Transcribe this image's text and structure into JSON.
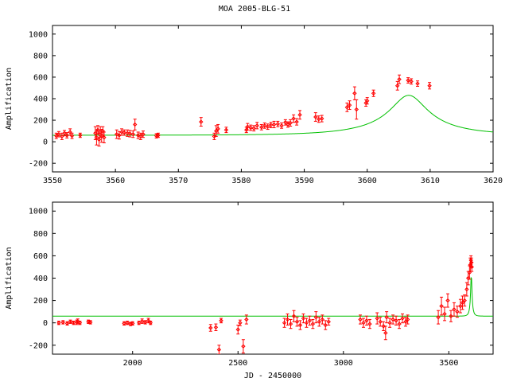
{
  "title": "MOA 2005-BLG-51",
  "colors": {
    "data": "#ff0000",
    "model": "#00c000",
    "axes": "#000000"
  },
  "chart_data": [
    {
      "type": "scatter",
      "ylabel": "Amplification",
      "xlabel": "",
      "xlim": [
        3550,
        3620
      ],
      "ylim": [
        -280,
        1080
      ],
      "xticks": [
        3550,
        3560,
        3570,
        3580,
        3590,
        3600,
        3610,
        3620
      ],
      "yticks": [
        -200,
        0,
        200,
        400,
        600,
        800,
        1000
      ],
      "grid": false,
      "series": [
        {
          "kind": "data_with_errorbars",
          "points": [
            [
              3550.6,
              55,
              25
            ],
            [
              3551.0,
              70,
              25
            ],
            [
              3551.5,
              50,
              30
            ],
            [
              3551.9,
              80,
              25
            ],
            [
              3552.3,
              60,
              25
            ],
            [
              3552.8,
              90,
              30
            ],
            [
              3553.1,
              55,
              25
            ],
            [
              3554.4,
              60,
              20
            ],
            [
              3556.8,
              80,
              60
            ],
            [
              3557.0,
              40,
              70
            ],
            [
              3557.2,
              110,
              40
            ],
            [
              3557.4,
              20,
              60
            ],
            [
              3557.6,
              90,
              50
            ],
            [
              3557.8,
              55,
              60
            ],
            [
              3558.0,
              100,
              40
            ],
            [
              3558.2,
              40,
              50
            ],
            [
              3560.2,
              70,
              40
            ],
            [
              3560.6,
              60,
              35
            ],
            [
              3561.0,
              90,
              30
            ],
            [
              3561.4,
              85,
              25
            ],
            [
              3561.9,
              80,
              30
            ],
            [
              3562.3,
              75,
              30
            ],
            [
              3562.8,
              70,
              30
            ],
            [
              3563.1,
              160,
              50
            ],
            [
              3563.6,
              60,
              30
            ],
            [
              3564.0,
              50,
              30
            ],
            [
              3564.4,
              70,
              30
            ],
            [
              3566.5,
              55,
              20
            ],
            [
              3566.8,
              60,
              20
            ],
            [
              3573.6,
              185,
              40
            ],
            [
              3575.7,
              50,
              30
            ],
            [
              3576.0,
              100,
              50
            ],
            [
              3576.3,
              120,
              40
            ],
            [
              3577.6,
              110,
              25
            ],
            [
              3580.8,
              110,
              25
            ],
            [
              3581.0,
              140,
              30
            ],
            [
              3581.5,
              130,
              25
            ],
            [
              3582.0,
              125,
              25
            ],
            [
              3582.5,
              150,
              30
            ],
            [
              3583.2,
              135,
              25
            ],
            [
              3583.7,
              150,
              25
            ],
            [
              3584.2,
              140,
              25
            ],
            [
              3584.7,
              155,
              25
            ],
            [
              3585.2,
              160,
              30
            ],
            [
              3585.8,
              165,
              25
            ],
            [
              3586.4,
              150,
              25
            ],
            [
              3587.0,
              180,
              25
            ],
            [
              3587.4,
              160,
              25
            ],
            [
              3587.8,
              175,
              30
            ],
            [
              3588.3,
              215,
              35
            ],
            [
              3588.8,
              185,
              30
            ],
            [
              3589.3,
              250,
              40
            ],
            [
              3591.8,
              230,
              40
            ],
            [
              3592.3,
              210,
              30
            ],
            [
              3592.8,
              215,
              30
            ],
            [
              3596.8,
              320,
              40
            ],
            [
              3597.2,
              340,
              40
            ],
            [
              3598.0,
              450,
              60
            ],
            [
              3598.3,
              300,
              90
            ],
            [
              3599.8,
              360,
              30
            ],
            [
              3600.0,
              380,
              30
            ],
            [
              3601.0,
              450,
              30
            ],
            [
              3604.8,
              520,
              40
            ],
            [
              3605.1,
              580,
              40
            ],
            [
              3606.5,
              570,
              25
            ],
            [
              3607.0,
              560,
              25
            ],
            [
              3608.0,
              540,
              25
            ],
            [
              3609.9,
              520,
              30
            ]
          ]
        },
        {
          "kind": "model_curve",
          "name": "",
          "t0": 3606.6,
          "tE": 12.0,
          "u0": 0.25,
          "scale": 120,
          "offset": -60
        }
      ]
    },
    {
      "type": "scatter",
      "ylabel": "Amplification",
      "xlabel": "JD - 2450000",
      "xlim": [
        1620,
        3710
      ],
      "ylim": [
        -280,
        1080
      ],
      "xticks": [
        2000,
        2500,
        3000,
        3500
      ],
      "yticks": [
        -200,
        0,
        200,
        400,
        600,
        800,
        1000
      ],
      "grid": false,
      "series": [
        {
          "kind": "data_with_errorbars",
          "points": [
            [
              1650,
              0,
              15
            ],
            [
              1670,
              5,
              15
            ],
            [
              1690,
              -5,
              15
            ],
            [
              1705,
              10,
              15
            ],
            [
              1720,
              0,
              15
            ],
            [
              1735,
              5,
              20
            ],
            [
              1740,
              15,
              20
            ],
            [
              1750,
              0,
              15
            ],
            [
              1790,
              10,
              15
            ],
            [
              1800,
              5,
              15
            ],
            [
              1960,
              -5,
              15
            ],
            [
              1975,
              0,
              15
            ],
            [
              1990,
              -10,
              15
            ],
            [
              2000,
              -5,
              15
            ],
            [
              2030,
              0,
              15
            ],
            [
              2045,
              15,
              20
            ],
            [
              2060,
              5,
              15
            ],
            [
              2075,
              20,
              20
            ],
            [
              2085,
              0,
              15
            ],
            [
              2370,
              -45,
              30
            ],
            [
              2395,
              -40,
              30
            ],
            [
              2410,
              -240,
              40
            ],
            [
              2420,
              20,
              20
            ],
            [
              2500,
              -60,
              40
            ],
            [
              2510,
              0,
              25
            ],
            [
              2525,
              -210,
              60
            ],
            [
              2540,
              30,
              40
            ],
            [
              2720,
              0,
              40
            ],
            [
              2735,
              30,
              50
            ],
            [
              2750,
              -10,
              40
            ],
            [
              2765,
              60,
              50
            ],
            [
              2780,
              10,
              40
            ],
            [
              2795,
              -20,
              40
            ],
            [
              2810,
              40,
              40
            ],
            [
              2825,
              0,
              40
            ],
            [
              2840,
              20,
              40
            ],
            [
              2855,
              -10,
              40
            ],
            [
              2870,
              50,
              50
            ],
            [
              2885,
              10,
              40
            ],
            [
              2900,
              30,
              40
            ],
            [
              2915,
              -20,
              40
            ],
            [
              2930,
              10,
              30
            ],
            [
              3080,
              30,
              40
            ],
            [
              3095,
              0,
              40
            ],
            [
              3110,
              20,
              40
            ],
            [
              3125,
              -10,
              40
            ],
            [
              3160,
              40,
              50
            ],
            [
              3175,
              10,
              40
            ],
            [
              3190,
              -30,
              40
            ],
            [
              3205,
              50,
              50
            ],
            [
              3220,
              0,
              40
            ],
            [
              3235,
              30,
              40
            ],
            [
              3250,
              20,
              40
            ],
            [
              3265,
              -10,
              40
            ],
            [
              3280,
              40,
              40
            ],
            [
              3295,
              10,
              40
            ],
            [
              3305,
              30,
              40
            ],
            [
              3200,
              -90,
              60
            ],
            [
              3450,
              50,
              60
            ],
            [
              3465,
              150,
              80
            ],
            [
              3480,
              80,
              60
            ],
            [
              3495,
              200,
              60
            ],
            [
              3510,
              60,
              50
            ],
            [
              3525,
              120,
              60
            ],
            [
              3540,
              100,
              50
            ],
            [
              3555,
              150,
              60
            ],
            [
              3565,
              180,
              60
            ],
            [
              3575,
              200,
              50
            ],
            [
              3585,
              300,
              60
            ],
            [
              3592,
              400,
              60
            ],
            [
              3598,
              450,
              60
            ],
            [
              3602,
              520,
              60
            ],
            [
              3605,
              560,
              40
            ],
            [
              3607,
              540,
              40
            ],
            [
              3609,
              500,
              40
            ]
          ]
        },
        {
          "kind": "model_curve",
          "name": "",
          "t0": 3606.6,
          "tE": 12.0,
          "u0": 0.25,
          "scale": 120,
          "offset": -60
        }
      ]
    }
  ]
}
